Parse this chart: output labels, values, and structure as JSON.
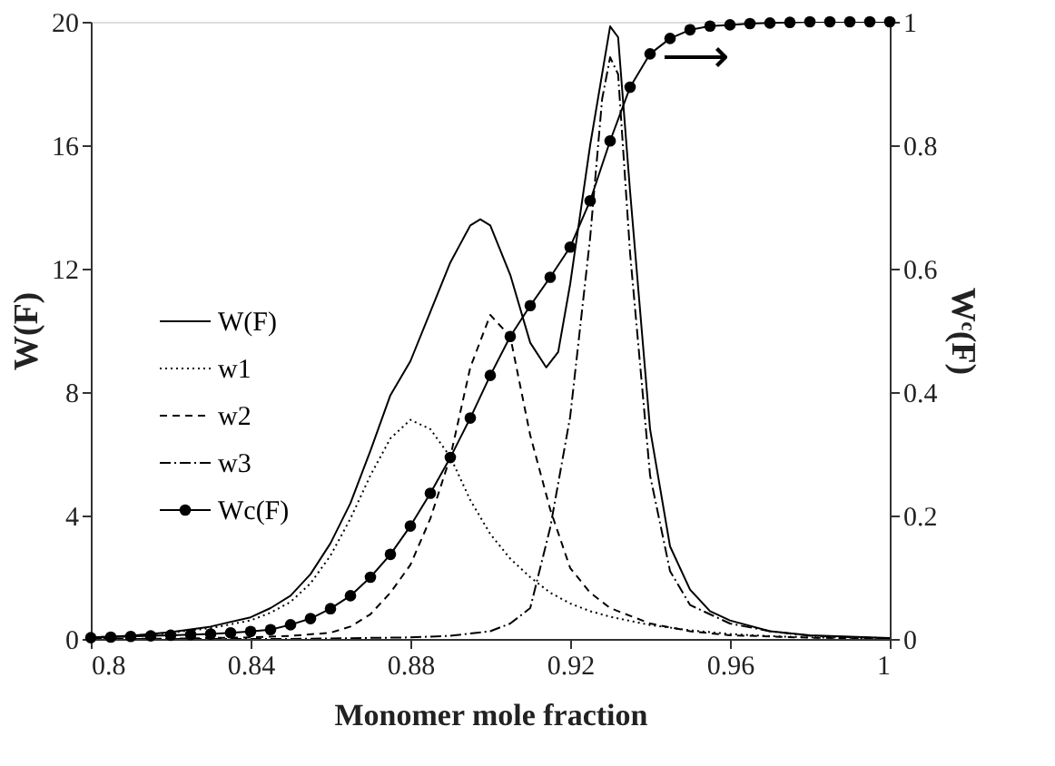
{
  "chart_data": {
    "type": "line",
    "xlabel": "Monomer mole fraction",
    "ylabel": "W(F)",
    "y2label": "Wᶜ(F)",
    "xlim": [
      0.8,
      1
    ],
    "xticks": [
      0.8,
      0.84,
      0.88,
      0.92,
      0.96,
      1
    ],
    "ylim": [
      0,
      20
    ],
    "yticks": [
      0,
      4,
      8,
      12,
      16,
      20
    ],
    "y2lim": [
      0,
      1
    ],
    "y2ticks": [
      0,
      0.2,
      0.4,
      0.6,
      0.8,
      1
    ],
    "grid": false,
    "legend": "left",
    "marker": "none",
    "annotations": [
      "⟶"
    ],
    "series": [
      {
        "name": "W(F)",
        "color": "#000000",
        "line_style": "solid",
        "x": [
          0.8,
          0.81,
          0.82,
          0.83,
          0.84,
          0.845,
          0.85,
          0.855,
          0.86,
          0.865,
          0.87,
          0.875,
          0.88,
          0.885,
          0.89,
          0.895,
          0.8975,
          0.9,
          0.905,
          0.91,
          0.914,
          0.917,
          0.92,
          0.925,
          0.93,
          0.932,
          0.935,
          0.94,
          0.945,
          0.95,
          0.955,
          0.96,
          0.97,
          0.98,
          1.0
        ],
        "values": [
          0.05,
          0.1,
          0.22,
          0.4,
          0.7,
          1.0,
          1.4,
          2.1,
          3.1,
          4.4,
          6.1,
          7.9,
          9.0,
          10.6,
          12.2,
          13.4,
          13.6,
          13.4,
          11.8,
          9.6,
          8.8,
          9.3,
          11.5,
          16.0,
          19.85,
          19.5,
          14.5,
          6.8,
          3.0,
          1.6,
          0.9,
          0.6,
          0.25,
          0.12,
          0.03
        ]
      },
      {
        "name": "w1",
        "color": "#000000",
        "line_style": "dotted",
        "x": [
          0.8,
          0.81,
          0.82,
          0.83,
          0.84,
          0.845,
          0.85,
          0.855,
          0.86,
          0.865,
          0.87,
          0.875,
          0.88,
          0.885,
          0.89,
          0.895,
          0.9,
          0.905,
          0.91,
          0.915,
          0.92,
          0.925,
          0.93,
          0.94,
          0.95,
          0.96,
          0.97,
          0.98,
          1.0
        ],
        "values": [
          0.05,
          0.1,
          0.2,
          0.35,
          0.6,
          0.85,
          1.2,
          1.8,
          2.7,
          3.9,
          5.3,
          6.5,
          7.1,
          6.8,
          5.9,
          4.5,
          3.4,
          2.6,
          2.0,
          1.5,
          1.15,
          0.9,
          0.72,
          0.45,
          0.28,
          0.16,
          0.09,
          0.05,
          0.02
        ]
      },
      {
        "name": "w2",
        "color": "#000000",
        "line_style": "dashed",
        "x": [
          0.8,
          0.82,
          0.84,
          0.85,
          0.86,
          0.865,
          0.87,
          0.875,
          0.88,
          0.885,
          0.89,
          0.895,
          0.9,
          0.905,
          0.91,
          0.915,
          0.92,
          0.925,
          0.93,
          0.94,
          0.95,
          0.96,
          0.98,
          1.0
        ],
        "values": [
          0.0,
          0.01,
          0.05,
          0.1,
          0.2,
          0.4,
          0.8,
          1.5,
          2.4,
          3.9,
          5.9,
          8.8,
          10.5,
          9.8,
          6.6,
          4.2,
          2.3,
          1.5,
          1.0,
          0.5,
          0.25,
          0.12,
          0.04,
          0.01
        ]
      },
      {
        "name": "w3",
        "color": "#000000",
        "line_style": "dashdot",
        "x": [
          0.8,
          0.85,
          0.88,
          0.89,
          0.9,
          0.905,
          0.91,
          0.915,
          0.92,
          0.925,
          0.928,
          0.93,
          0.932,
          0.935,
          0.94,
          0.945,
          0.95,
          0.96,
          0.97,
          0.98,
          1.0
        ],
        "values": [
          0.0,
          0.0,
          0.05,
          0.1,
          0.25,
          0.5,
          1.0,
          3.6,
          7.2,
          13.0,
          17.5,
          18.85,
          18.3,
          12.5,
          5.3,
          2.2,
          1.1,
          0.5,
          0.25,
          0.1,
          0.02
        ]
      },
      {
        "name": "Wc(F)",
        "color": "#000000",
        "line_style": "solid",
        "marker": "circle",
        "axis": "y2",
        "x": [
          0.8,
          0.805,
          0.81,
          0.815,
          0.82,
          0.825,
          0.83,
          0.835,
          0.84,
          0.845,
          0.85,
          0.855,
          0.86,
          0.865,
          0.87,
          0.875,
          0.88,
          0.885,
          0.89,
          0.895,
          0.9,
          0.905,
          0.91,
          0.915,
          0.92,
          0.925,
          0.93,
          0.935,
          0.94,
          0.945,
          0.95,
          0.955,
          0.96,
          0.965,
          0.97,
          0.975,
          0.98,
          0.985,
          0.99,
          0.995,
          1.0
        ],
        "values": [
          0.002,
          0.003,
          0.004,
          0.005,
          0.006,
          0.007,
          0.008,
          0.01,
          0.012,
          0.015,
          0.023,
          0.033,
          0.049,
          0.07,
          0.1,
          0.137,
          0.183,
          0.236,
          0.294,
          0.358,
          0.427,
          0.49,
          0.54,
          0.586,
          0.635,
          0.71,
          0.807,
          0.894,
          0.948,
          0.973,
          0.987,
          0.993,
          0.995,
          0.997,
          0.998,
          0.999,
          1,
          1,
          1,
          1,
          1
        ]
      }
    ]
  }
}
